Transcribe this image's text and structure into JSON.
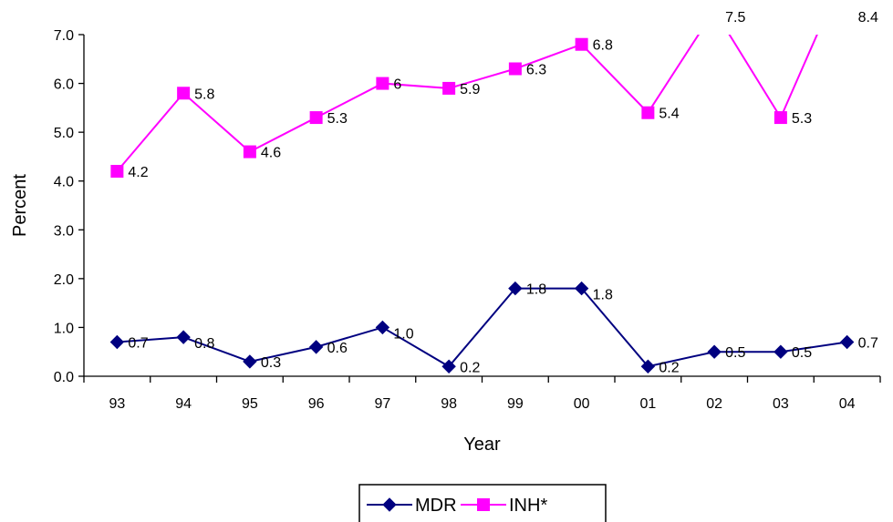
{
  "chart_data": {
    "type": "line",
    "xlabel": "Year",
    "ylabel": "Percent",
    "categories": [
      "93",
      "94",
      "95",
      "96",
      "97",
      "98",
      "99",
      "00",
      "01",
      "02",
      "03",
      "04"
    ],
    "ylim": [
      0,
      7
    ],
    "yticks": [
      "0.0",
      "1.0",
      "2.0",
      "3.0",
      "4.0",
      "5.0",
      "6.0",
      "7.0"
    ],
    "grid": false,
    "legend_position": "bottom",
    "series": [
      {
        "name": "MDR",
        "color": "#000080",
        "marker": "diamond",
        "values": [
          0.7,
          0.8,
          0.3,
          0.6,
          1.0,
          0.2,
          1.8,
          1.8,
          0.2,
          0.5,
          0.5,
          0.7
        ],
        "labels": [
          "0.7",
          "0.8",
          "0.3",
          "0.6",
          "1.0",
          "0.2",
          "1.8",
          "1.8",
          "0.2",
          "0.5",
          "0.5",
          "0.7"
        ]
      },
      {
        "name": "INH*",
        "color": "#FF00FF",
        "marker": "square",
        "values": [
          4.2,
          5.8,
          4.6,
          5.3,
          6.0,
          5.9,
          6.3,
          6.8,
          5.4,
          7.5,
          5.3,
          8.4
        ],
        "labels": [
          "4.2",
          "5.8",
          "4.6",
          "5.3",
          "6",
          "5.9",
          "6.3",
          "6.8",
          "5.4",
          "7.5",
          "5.3",
          "8.4"
        ]
      }
    ]
  }
}
